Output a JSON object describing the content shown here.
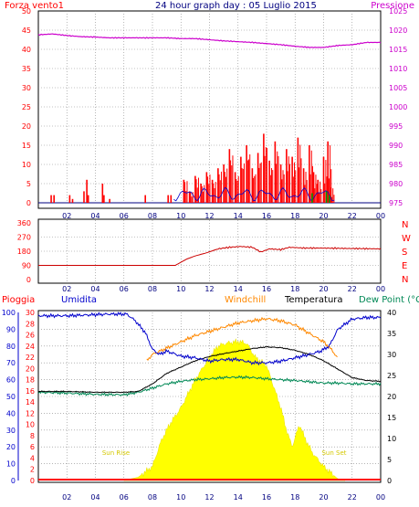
{
  "top": {
    "title": "24 hour graph day : 05 Luglio 2015",
    "left_label": "Forza vento1",
    "right_label": "Pressione",
    "left_ticks": [
      0,
      5,
      10,
      15,
      20,
      25,
      30,
      35,
      40,
      45,
      50
    ],
    "right_ticks": [
      975,
      980,
      985,
      990,
      995,
      1000,
      1005,
      1010,
      1015,
      1020,
      1025
    ],
    "x_ticks": [
      "02",
      "04",
      "06",
      "08",
      "10",
      "12",
      "14",
      "16",
      "18",
      "20",
      "22",
      "00"
    ]
  },
  "middle": {
    "left_ticks": [
      0,
      90,
      180,
      270,
      360
    ],
    "compass": [
      "N",
      "W",
      "S",
      "E",
      "N"
    ],
    "x_ticks": [
      "02",
      "04",
      "06",
      "08",
      "10",
      "12",
      "14",
      "16",
      "18",
      "20",
      "22",
      "00"
    ]
  },
  "bottom": {
    "legend": {
      "rain": "Pioggia",
      "humidity": "Umidita",
      "windchill": "Windchill",
      "temperature": "Temperatura",
      "dewpoint": "Dew Point (°C"
    },
    "humidity_ticks": [
      0,
      10,
      20,
      30,
      40,
      50,
      60,
      70,
      80,
      90,
      100
    ],
    "rain_ticks": [
      0,
      2,
      4,
      6,
      8,
      10,
      12,
      14,
      16,
      18,
      20,
      22,
      24,
      26,
      28,
      30
    ],
    "temp_ticks": [
      0,
      5,
      10,
      15,
      20,
      25,
      30,
      35,
      40
    ],
    "sun_rise": "Sun Rise",
    "sun_set": "Sun Set",
    "x_ticks": [
      "02",
      "04",
      "06",
      "08",
      "10",
      "12",
      "14",
      "16",
      "18",
      "20",
      "22",
      "00"
    ]
  },
  "colors": {
    "wind": "#ff0000",
    "gust": "#0000cc",
    "wind_green": "#009900",
    "pressure": "#cc00cc",
    "direction": "#cc0000",
    "humidity": "#0000cc",
    "windchill": "#ff8800",
    "temperature": "#000000",
    "dewpoint": "#008855",
    "solar": "#ffff00",
    "rain": "#ff0000"
  },
  "chart_data": [
    {
      "type": "line",
      "title": "24 hour graph day : 05 Luglio 2015",
      "xlabel": "",
      "x_unit": "hour",
      "xlim": [
        0,
        24
      ],
      "series": [
        {
          "name": "Forza vento1",
          "axis": "left",
          "ylim": [
            0,
            50
          ],
          "points": [
            [
              0.9,
              2
            ],
            [
              1.1,
              2
            ],
            [
              2.2,
              2
            ],
            [
              2.4,
              1
            ],
            [
              3.2,
              3
            ],
            [
              3.4,
              6
            ],
            [
              3.5,
              2
            ],
            [
              4.5,
              5
            ],
            [
              4.6,
              2
            ],
            [
              5.0,
              1
            ],
            [
              7.5,
              2
            ],
            [
              9.1,
              2
            ],
            [
              9.3,
              2
            ],
            [
              10.2,
              6
            ],
            [
              10.6,
              3
            ],
            [
              11.0,
              7
            ],
            [
              11.4,
              5
            ],
            [
              11.8,
              8
            ],
            [
              12.2,
              6
            ],
            [
              12.6,
              9
            ],
            [
              13.0,
              10
            ],
            [
              13.4,
              14
            ],
            [
              13.8,
              8
            ],
            [
              14.2,
              12
            ],
            [
              14.6,
              15
            ],
            [
              15.0,
              9
            ],
            [
              15.4,
              13
            ],
            [
              15.8,
              18
            ],
            [
              16.2,
              11
            ],
            [
              16.6,
              16
            ],
            [
              17.0,
              10
            ],
            [
              17.4,
              14
            ],
            [
              17.8,
              12
            ],
            [
              18.2,
              17
            ],
            [
              18.6,
              9
            ],
            [
              19.0,
              15
            ],
            [
              19.3,
              8
            ],
            [
              19.6,
              6
            ],
            [
              20.0,
              12
            ],
            [
              20.3,
              16
            ],
            [
              20.5,
              4
            ]
          ]
        },
        {
          "name": "Pressione",
          "axis": "right",
          "ylim": [
            975,
            1025
          ],
          "points": [
            [
              0,
              1018.8
            ],
            [
              1,
              1019.0
            ],
            [
              2,
              1018.6
            ],
            [
              3,
              1018.3
            ],
            [
              4,
              1018.2
            ],
            [
              5,
              1018.0
            ],
            [
              6,
              1018.0
            ],
            [
              7,
              1018.0
            ],
            [
              8,
              1018.0
            ],
            [
              9,
              1018.0
            ],
            [
              10,
              1017.8
            ],
            [
              11,
              1017.8
            ],
            [
              12,
              1017.5
            ],
            [
              13,
              1017.2
            ],
            [
              14,
              1017.0
            ],
            [
              15,
              1016.8
            ],
            [
              16,
              1016.5
            ],
            [
              17,
              1016.2
            ],
            [
              18,
              1015.8
            ],
            [
              19,
              1015.5
            ],
            [
              20,
              1015.5
            ],
            [
              21,
              1016.0
            ],
            [
              22,
              1016.2
            ],
            [
              23,
              1016.8
            ],
            [
              24,
              1016.8
            ]
          ]
        }
      ]
    },
    {
      "type": "line",
      "xlabel": "",
      "x_unit": "hour",
      "xlim": [
        0,
        24
      ],
      "ylim": [
        0,
        360
      ],
      "series": [
        {
          "points": [
            [
              0,
              90
            ],
            [
              9.6,
              90
            ],
            [
              10.0,
              110
            ],
            [
              10.4,
              130
            ],
            [
              11.0,
              150
            ],
            [
              11.8,
              170
            ],
            [
              12.6,
              195
            ],
            [
              13.4,
              205
            ],
            [
              14.2,
              210
            ],
            [
              15.0,
              205
            ],
            [
              15.6,
              175
            ],
            [
              16.2,
              195
            ],
            [
              17.0,
              190
            ],
            [
              17.6,
              205
            ],
            [
              18.6,
              200
            ],
            [
              19.6,
              200
            ],
            [
              24,
              195
            ]
          ]
        }
      ]
    },
    {
      "type": "area",
      "xlabel": "",
      "x_unit": "hour",
      "xlim": [
        0,
        24
      ],
      "series": [
        {
          "name": "Umidita",
          "axis": "humidity",
          "ylim": [
            0,
            100
          ],
          "points": [
            [
              0,
              98
            ],
            [
              2,
              98
            ],
            [
              5,
              99
            ],
            [
              6.2,
              99
            ],
            [
              6.8,
              95
            ],
            [
              7.5,
              88
            ],
            [
              8.0,
              78
            ],
            [
              8.5,
              75
            ],
            [
              9.0,
              77
            ],
            [
              10.0,
              74
            ],
            [
              11.0,
              73
            ],
            [
              12.0,
              71
            ],
            [
              13.0,
              72
            ],
            [
              14.0,
              72
            ],
            [
              15.0,
              70
            ],
            [
              16.0,
              70
            ],
            [
              17.0,
              71
            ],
            [
              18.0,
              73
            ],
            [
              19.0,
              75
            ],
            [
              19.8,
              77
            ],
            [
              20.4,
              80
            ],
            [
              21.0,
              90
            ],
            [
              22.0,
              96
            ],
            [
              23.0,
              97
            ],
            [
              24,
              97
            ]
          ]
        },
        {
          "name": "Windchill",
          "axis": "temperature",
          "ylim": [
            0,
            40
          ],
          "points": [
            [
              7.6,
              28.5
            ],
            [
              8.0,
              30.0
            ],
            [
              9.0,
              31.5
            ],
            [
              10.0,
              33.0
            ],
            [
              11.0,
              34.5
            ],
            [
              12.0,
              35.5
            ],
            [
              13.0,
              36.5
            ],
            [
              14.0,
              37.5
            ],
            [
              15.0,
              38.0
            ],
            [
              16.0,
              38.5
            ],
            [
              17.0,
              38.0
            ],
            [
              18.0,
              37.0
            ],
            [
              19.0,
              35.0
            ],
            [
              20.0,
              33.0
            ],
            [
              20.6,
              31.0
            ],
            [
              21.0,
              29.0
            ]
          ]
        },
        {
          "name": "Temperatura",
          "axis": "temperature",
          "ylim": [
            0,
            40
          ],
          "points": [
            [
              0,
              21.2
            ],
            [
              2,
              21.2
            ],
            [
              4,
              21.0
            ],
            [
              6,
              21.0
            ],
            [
              7.0,
              21.2
            ],
            [
              8.0,
              23.0
            ],
            [
              9.0,
              25.5
            ],
            [
              10.0,
              27.0
            ],
            [
              11.0,
              28.5
            ],
            [
              12.0,
              29.5
            ],
            [
              13.0,
              30.2
            ],
            [
              14.0,
              30.8
            ],
            [
              15.0,
              31.4
            ],
            [
              16.0,
              31.8
            ],
            [
              17.0,
              31.6
            ],
            [
              18.0,
              31.0
            ],
            [
              19.0,
              30.0
            ],
            [
              20.0,
              28.5
            ],
            [
              21.0,
              26.5
            ],
            [
              22.0,
              24.5
            ],
            [
              23.0,
              23.8
            ],
            [
              24,
              23.6
            ]
          ]
        },
        {
          "name": "Dew Point (°C",
          "axis": "temperature",
          "ylim": [
            0,
            40
          ],
          "points": [
            [
              0,
              21.0
            ],
            [
              2,
              20.8
            ],
            [
              4,
              20.5
            ],
            [
              6,
              20.4
            ],
            [
              7.0,
              21.0
            ],
            [
              8.0,
              22.0
            ],
            [
              9.0,
              23.0
            ],
            [
              10.0,
              23.6
            ],
            [
              11.0,
              24.0
            ],
            [
              12.0,
              24.2
            ],
            [
              13.0,
              24.5
            ],
            [
              14.0,
              24.6
            ],
            [
              15.0,
              24.5
            ],
            [
              16.0,
              24.2
            ],
            [
              17.0,
              24.0
            ],
            [
              18.0,
              23.8
            ],
            [
              19.0,
              23.5
            ],
            [
              20.0,
              23.2
            ],
            [
              21.0,
              23.2
            ],
            [
              22.0,
              23.0
            ],
            [
              23.0,
              23.0
            ],
            [
              24,
              23.0
            ]
          ]
        },
        {
          "name": "Solar",
          "axis": "rain",
          "ylim": [
            0,
            30
          ],
          "points": [
            [
              6.0,
              0
            ],
            [
              7.0,
              0.6
            ],
            [
              8.0,
              2.5
            ],
            [
              8.6,
              7
            ],
            [
              9.2,
              10
            ],
            [
              10.0,
              13
            ],
            [
              11.0,
              18
            ],
            [
              12.0,
              22
            ],
            [
              12.6,
              24
            ],
            [
              13.2,
              24.5
            ],
            [
              14.0,
              24.8
            ],
            [
              14.6,
              24.5
            ],
            [
              15.2,
              22
            ],
            [
              16.0,
              20.5
            ],
            [
              16.6,
              16
            ],
            [
              17.0,
              13
            ],
            [
              17.4,
              9
            ],
            [
              17.8,
              6
            ],
            [
              18.3,
              10
            ],
            [
              18.7,
              7.5
            ],
            [
              19.2,
              5
            ],
            [
              20.0,
              2.5
            ],
            [
              21.0,
              0.3
            ],
            [
              21.5,
              0
            ]
          ]
        },
        {
          "name": "Pioggia",
          "axis": "rain",
          "ylim": [
            0,
            30
          ],
          "points": [
            [
              0,
              0.2
            ],
            [
              24,
              0.2
            ]
          ]
        }
      ]
    }
  ]
}
